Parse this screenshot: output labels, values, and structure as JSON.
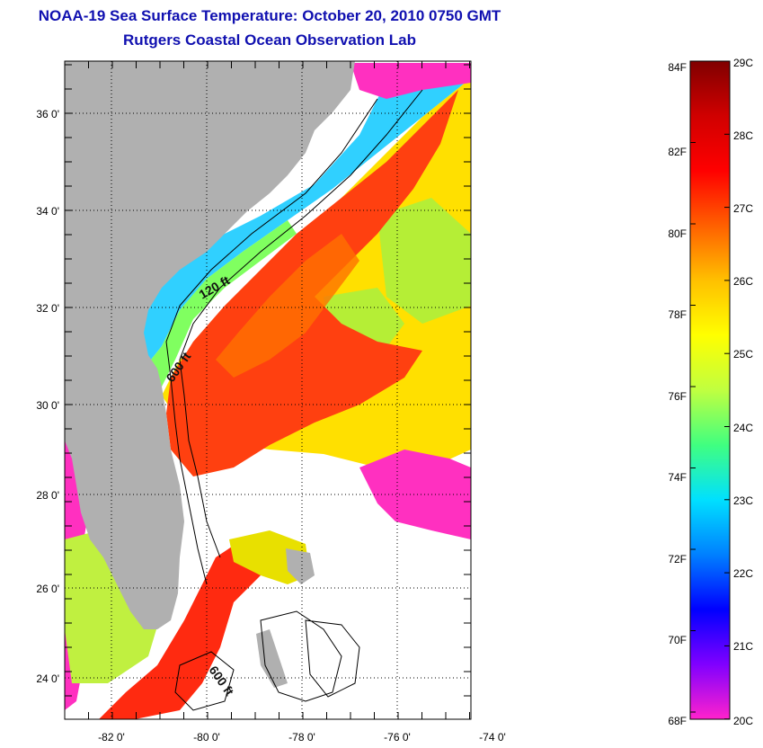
{
  "title": "NOAA-19 Sea Surface Temperature:  October 20, 2010 0750 GMT",
  "subtitle": "Rutgers Coastal Ocean Observation Lab",
  "map": {
    "lon_labels": [
      "-82 0'",
      "-80 0'",
      "-78 0'",
      "-76 0'",
      "-74 0'"
    ],
    "lat_labels": [
      "36 0'",
      "34 0'",
      "32 0'",
      "30 0'",
      "28 0'",
      "26 0'",
      "24 0'"
    ],
    "contour_labels": [
      "120 ft",
      "600 ft",
      "600 ft"
    ],
    "colors": {
      "land": "#b0b0b0",
      "cloud": "#ffffff",
      "frame": "#000000"
    }
  },
  "colorbar": {
    "fahrenheit": [
      "84F",
      "82F",
      "80F",
      "78F",
      "76F",
      "74F",
      "72F",
      "70F",
      "68F"
    ],
    "celsius": [
      "29C",
      "28C",
      "27C",
      "26C",
      "25C",
      "24C",
      "23C",
      "22C",
      "21C",
      "20C"
    ],
    "stops": [
      "#ff22cc",
      "#8000ff",
      "#0000ff",
      "#0080ff",
      "#00e0ff",
      "#40ff80",
      "#c0ff40",
      "#ffff00",
      "#ffc000",
      "#ff6000",
      "#ff0000",
      "#d00000",
      "#800000"
    ]
  }
}
